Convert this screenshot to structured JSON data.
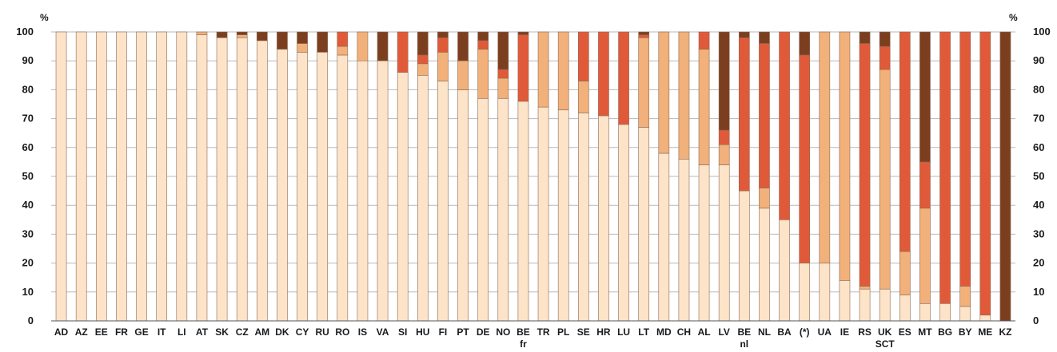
{
  "chart_data": {
    "type": "bar",
    "stacked": true,
    "orientation": "vertical",
    "unit_left": "%",
    "unit_right": "%",
    "ylim": [
      0,
      100
    ],
    "yticks": [
      0,
      10,
      20,
      30,
      40,
      50,
      60,
      70,
      80,
      90,
      100
    ],
    "yticks_right": [
      "0",
      "10",
      "20",
      "30",
      "40",
      "50",
      "60",
      "70",
      "80",
      "90",
      "100"
    ],
    "grid": true,
    "legend": "none",
    "categories": [
      "AD",
      "AZ",
      "EE",
      "FR",
      "GE",
      "IT",
      "LI",
      "AT",
      "SK",
      "CZ",
      "AM",
      "DK",
      "CY",
      "RU",
      "RO",
      "IS",
      "VA",
      "SI",
      "HU",
      "FI",
      "PT",
      "DE",
      "NO",
      "BE",
      "TR",
      "PL",
      "SE",
      "HR",
      "LU",
      "LT",
      "MD",
      "CH",
      "AL",
      "LV",
      "BE",
      "NL",
      "BA",
      "(*)",
      "UA",
      "IE",
      "RS",
      "UK",
      "ES",
      "MT",
      "BG",
      "BY",
      "ME",
      "KZ"
    ],
    "category_sublabels": [
      "",
      "",
      "",
      "",
      "",
      "",
      "",
      "",
      "",
      "",
      "",
      "",
      "",
      "",
      "",
      "",
      "",
      "",
      "",
      "",
      "",
      "",
      "",
      "fr",
      "",
      "",
      "",
      "",
      "",
      "",
      "",
      "",
      "",
      "",
      "nl",
      "",
      "",
      "",
      "",
      "",
      "",
      "SCT",
      "",
      "",
      "",
      "",
      "",
      ""
    ],
    "series": [
      {
        "color": "#fde3c8",
        "values": [
          100,
          100,
          100,
          100,
          100,
          100,
          100,
          99,
          98,
          98,
          97,
          94,
          93,
          93,
          92,
          90,
          90,
          86,
          85,
          83,
          80,
          77,
          77,
          76,
          74,
          73,
          72,
          71,
          68,
          67,
          58,
          56,
          54,
          54,
          45,
          39,
          35,
          20,
          20,
          14,
          11,
          11,
          9,
          6,
          6,
          5,
          2,
          0
        ]
      },
      {
        "color": "#f2b07a",
        "values": [
          0,
          0,
          0,
          0,
          0,
          0,
          0,
          1,
          0,
          1,
          0,
          0,
          3,
          0,
          3,
          10,
          0,
          0,
          4,
          10,
          10,
          17,
          7,
          0,
          26,
          27,
          11,
          0,
          0,
          31,
          42,
          44,
          40,
          7,
          0,
          7,
          0,
          0,
          80,
          86,
          1,
          76,
          15,
          33,
          0,
          7,
          0,
          0
        ]
      },
      {
        "color": "#e05a3a",
        "values": [
          0,
          0,
          0,
          0,
          0,
          0,
          0,
          0,
          0,
          0,
          0,
          0,
          0,
          0,
          5,
          0,
          0,
          14,
          3,
          5,
          0,
          3,
          3,
          23,
          0,
          0,
          17,
          29,
          32,
          1,
          0,
          0,
          6,
          5,
          53,
          50,
          65,
          72,
          0,
          0,
          84,
          8,
          76,
          16,
          94,
          88,
          98,
          0
        ]
      },
      {
        "color": "#7b3f20",
        "values": [
          0,
          0,
          0,
          0,
          0,
          0,
          0,
          0,
          2,
          1,
          3,
          6,
          4,
          7,
          0,
          0,
          10,
          0,
          8,
          2,
          10,
          3,
          13,
          1,
          0,
          0,
          0,
          0,
          0,
          1,
          0,
          0,
          0,
          34,
          2,
          4,
          0,
          8,
          0,
          0,
          4,
          5,
          0,
          45,
          0,
          0,
          0,
          100
        ]
      }
    ]
  }
}
